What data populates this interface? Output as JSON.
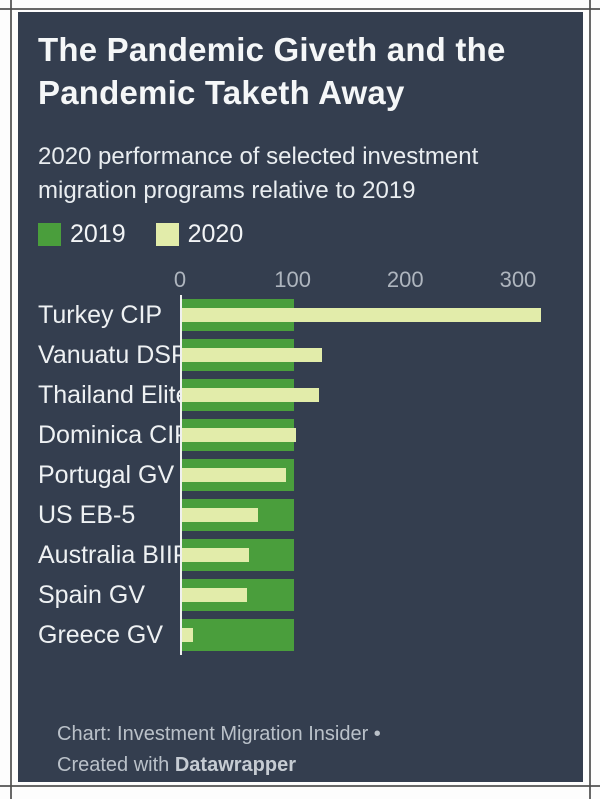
{
  "chart_data": {
    "type": "bar",
    "orientation": "horizontal",
    "title": "The Pandemic Giveth and the Pandemic Taketh Away",
    "subtitle": "2020 performance of selected investment migration programs relative to 2019",
    "categories": [
      "Turkey CIP",
      "Vanuatu DSP",
      "Thailand Elite",
      "Dominica CIP",
      "Portugal GV",
      "US EB-5",
      "Australia BIIP",
      "Spain GV",
      "Greece GV"
    ],
    "series": [
      {
        "name": "2019",
        "color": "#4a9e3c",
        "values": [
          100,
          100,
          100,
          100,
          100,
          100,
          100,
          100,
          100
        ]
      },
      {
        "name": "2020",
        "color": "#e2ecaa",
        "values": [
          320,
          125,
          122,
          102,
          93,
          68,
          60,
          58,
          10
        ]
      }
    ],
    "x_ticks": [
      "0",
      "100",
      "200",
      "300"
    ],
    "x_tick_values": [
      0,
      100,
      200,
      300
    ],
    "xlim": [
      0,
      340
    ],
    "grid": false,
    "legend_position": "top-left",
    "colors": {
      "background": "#343e4f",
      "bar_2019": "#4a9e3c",
      "bar_2020": "#e2ecaa",
      "axis_text": "#aeb5be",
      "zero_line": "#f0f1ef",
      "text": "#f2f4f6"
    },
    "footer": {
      "line1": "Chart: Investment Migration Insider •",
      "line2_prefix": "Created with ",
      "line2_brand": "Datawrapper"
    }
  }
}
